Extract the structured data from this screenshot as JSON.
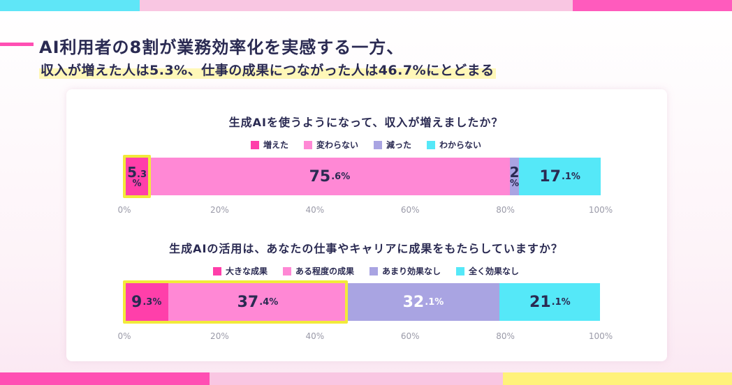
{
  "headline": {
    "line1": "AI利用者の8割が業務効率化を実感する一方、",
    "line2": "収入が増えた人は5.3%、仕事の成果につながった人は46.7%にとどまる"
  },
  "colors": {
    "pink_dark": "#ff3faa",
    "pink_light": "#ff88d5",
    "lavender": "#a9a4e2",
    "cyan": "#55e8f8",
    "highlight": "#f2ea3a",
    "accent": "#ff4fb3"
  },
  "axis_ticks": [
    "0%",
    "20%",
    "40%",
    "60%",
    "80%",
    "100%"
  ],
  "chart_data": [
    {
      "type": "bar",
      "orientation": "horizontal-stacked",
      "title": "生成AIを使うようになって、収入が増えましたか？",
      "categories": [
        "増えた",
        "変わらない",
        "減った",
        "わからない"
      ],
      "values": [
        5.3,
        75.6,
        2.0,
        17.1
      ],
      "labels": [
        {
          "num": "5.3",
          "unit": "%"
        },
        {
          "num": "75.6",
          "unit": "%"
        },
        {
          "num": "2",
          "unit": "%"
        },
        {
          "num": "17.1",
          "unit": "%"
        }
      ],
      "xlim": [
        0,
        100
      ],
      "highlight_range": [
        0,
        5.3
      ]
    },
    {
      "type": "bar",
      "orientation": "horizontal-stacked",
      "title": "生成AIの活用は、あなたの仕事やキャリアに成果をもたらしていますか？",
      "categories": [
        "大きな成果",
        "ある程度の成果",
        "あまり効果なし",
        "全く効果なし"
      ],
      "values": [
        9.3,
        37.4,
        32.1,
        21.1
      ],
      "labels": [
        {
          "num": "9.3",
          "unit": "%"
        },
        {
          "num": "37.4",
          "unit": "%"
        },
        {
          "num": "32.1",
          "unit": "%"
        },
        {
          "num": "21.1",
          "unit": "%"
        }
      ],
      "xlim": [
        0,
        100
      ],
      "highlight_range": [
        0,
        46.7
      ]
    }
  ]
}
